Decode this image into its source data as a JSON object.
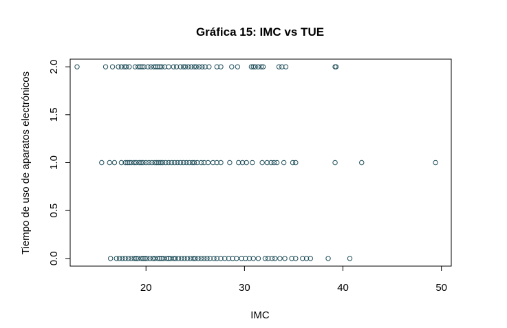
{
  "chart_data": {
    "type": "scatter",
    "title": "Gráfica 15: IMC vs TUE",
    "xlabel": "IMC",
    "ylabel": "Tiempo de uso de aparatos electrónicos",
    "xlim": [
      12.3,
      51.0
    ],
    "ylim": [
      -0.08,
      2.08
    ],
    "xticks": [
      "20",
      "30",
      "40",
      "50"
    ],
    "xtick_values": [
      20,
      30,
      40,
      50
    ],
    "yticks": [
      "0.0",
      "0.5",
      "1.0",
      "1.5",
      "2.0"
    ],
    "ytick_values": [
      0,
      0.5,
      1.0,
      1.5,
      2.0
    ],
    "point_color": "#1f4e5a",
    "grid": false,
    "series": [
      {
        "y": 2.0,
        "x": [
          13.0,
          15.9,
          16.6,
          17.2,
          17.5,
          17.8,
          18.0,
          18.3,
          18.9,
          19.2,
          19.4,
          19.6,
          19.8,
          20.2,
          20.5,
          20.8,
          21.0,
          21.2,
          21.4,
          21.6,
          21.9,
          22.3,
          22.8,
          23.1,
          23.5,
          23.8,
          24.0,
          24.3,
          24.6,
          24.9,
          25.1,
          25.4,
          25.7,
          26.0,
          26.4,
          27.2,
          27.6,
          28.7,
          29.3,
          30.7,
          30.9,
          31.1,
          31.4,
          31.7,
          31.9,
          33.5,
          33.8,
          34.2,
          39.2,
          39.3
        ]
      },
      {
        "y": 1.0,
        "x": [
          15.5,
          16.3,
          16.8,
          17.5,
          17.9,
          18.1,
          18.3,
          18.5,
          18.8,
          19.0,
          19.3,
          19.5,
          19.7,
          20.0,
          20.3,
          20.6,
          20.9,
          21.1,
          21.3,
          21.5,
          21.7,
          22.0,
          22.3,
          22.6,
          22.9,
          23.2,
          23.5,
          23.8,
          24.1,
          24.4,
          24.7,
          24.9,
          25.2,
          25.6,
          25.9,
          26.3,
          26.8,
          27.2,
          27.6,
          28.5,
          29.4,
          29.8,
          30.2,
          30.8,
          31.8,
          32.3,
          32.7,
          33.0,
          33.3,
          34.0,
          34.9,
          35.2,
          39.2,
          41.9,
          49.4
        ]
      },
      {
        "y": 0.0,
        "x": [
          16.4,
          17.0,
          17.3,
          17.6,
          17.9,
          18.2,
          18.5,
          18.8,
          19.0,
          19.2,
          19.5,
          19.7,
          19.9,
          20.1,
          20.4,
          20.7,
          20.9,
          21.2,
          21.4,
          21.6,
          21.8,
          22.1,
          22.3,
          22.5,
          22.8,
          23.0,
          23.3,
          23.6,
          23.9,
          24.2,
          24.5,
          24.8,
          25.0,
          25.3,
          25.6,
          25.9,
          26.2,
          26.5,
          26.9,
          27.2,
          27.6,
          28.0,
          28.4,
          28.8,
          29.2,
          29.7,
          30.1,
          30.5,
          30.9,
          31.4,
          32.1,
          32.4,
          32.8,
          33.1,
          33.6,
          34.1,
          34.8,
          35.2,
          35.9,
          36.3,
          36.7,
          38.5,
          40.7
        ]
      }
    ]
  }
}
